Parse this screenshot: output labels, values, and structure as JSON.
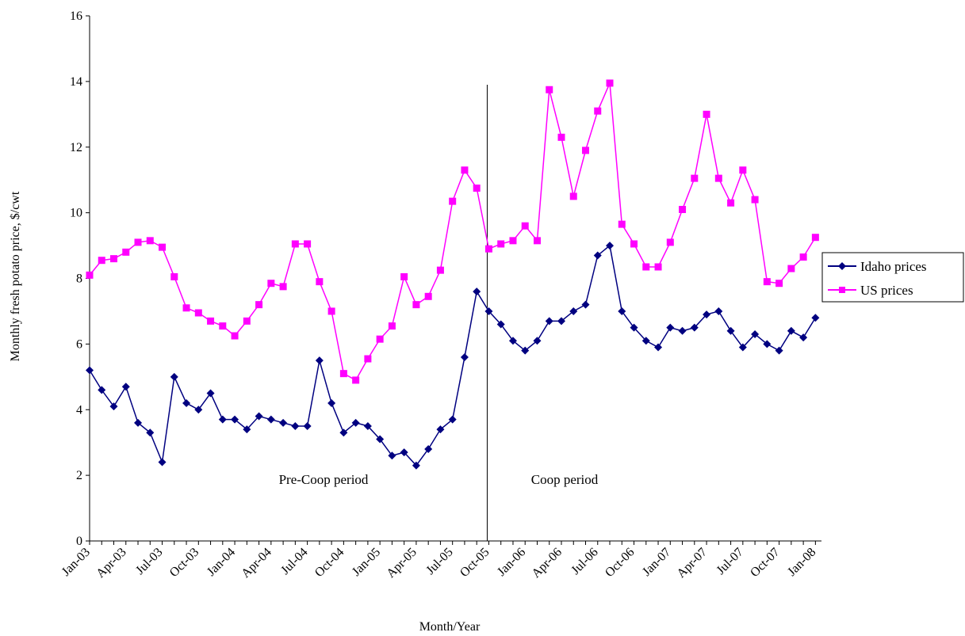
{
  "chart_data": {
    "type": "line",
    "xlabel": "Month/Year",
    "ylabel": "Monthly fresh potato price, $/cwt",
    "ylim": [
      0,
      16
    ],
    "yticks": [
      "0",
      "2",
      "4",
      "6",
      "8",
      "10",
      "12",
      "14",
      "16"
    ],
    "x_tick_labels": [
      "Jan-03",
      "Apr-03",
      "Jul-03",
      "Oct-03",
      "Jan-04",
      "Apr-04",
      "Jul-04",
      "Oct-04",
      "Jan-05",
      "Apr-05",
      "Jul-05",
      "Oct-05",
      "Jan-06",
      "Apr-06",
      "Jul-06",
      "Oct-06",
      "Jan-07",
      "Apr-07",
      "Jul-07",
      "Oct-07",
      "Jan-08"
    ],
    "x_range": [
      "Jan-03",
      "Mar-08"
    ],
    "legend_position": "right",
    "grid": false,
    "divider_at": "Oct-05",
    "annotations": {
      "pre": "Pre-Coop period",
      "post": "Coop period"
    },
    "series": [
      {
        "name": "Idaho prices",
        "color": "#000080",
        "marker": "diamond",
        "values": [
          5.2,
          4.6,
          4.1,
          4.7,
          3.6,
          3.3,
          2.4,
          5.0,
          4.2,
          4.0,
          4.5,
          3.7,
          3.7,
          3.4,
          3.8,
          3.7,
          3.6,
          3.5,
          3.5,
          5.5,
          4.2,
          3.3,
          3.6,
          3.5,
          3.1,
          2.6,
          2.7,
          2.3,
          2.8,
          3.4,
          3.7,
          5.6,
          7.6,
          7.0,
          6.6,
          6.1,
          5.8,
          6.1,
          6.7,
          6.7,
          7.0,
          7.2,
          8.7,
          9.0,
          7.0,
          6.5,
          6.1,
          5.9,
          6.5,
          6.4,
          6.5,
          6.9,
          7.0,
          6.4,
          5.9,
          6.3,
          6.0,
          5.8,
          6.4,
          6.2,
          6.8
        ]
      },
      {
        "name": "US prices",
        "color": "#FF00FF",
        "marker": "square",
        "values": [
          8.1,
          8.55,
          8.6,
          8.8,
          9.1,
          9.15,
          8.95,
          8.05,
          7.1,
          6.95,
          6.7,
          6.55,
          6.25,
          6.7,
          7.2,
          7.85,
          7.75,
          9.05,
          9.05,
          7.9,
          7.0,
          5.1,
          4.9,
          5.55,
          6.15,
          6.55,
          8.05,
          7.2,
          7.45,
          8.25,
          10.35,
          11.3,
          10.75,
          8.9,
          9.05,
          9.15,
          9.6,
          9.15,
          13.75,
          12.3,
          10.5,
          11.9,
          13.1,
          13.95,
          9.65,
          9.05,
          8.35,
          8.35,
          9.1,
          10.1,
          11.05,
          13.0,
          11.05,
          10.3,
          11.3,
          10.4,
          7.9,
          7.85,
          8.3,
          8.65,
          9.25
        ]
      }
    ]
  }
}
